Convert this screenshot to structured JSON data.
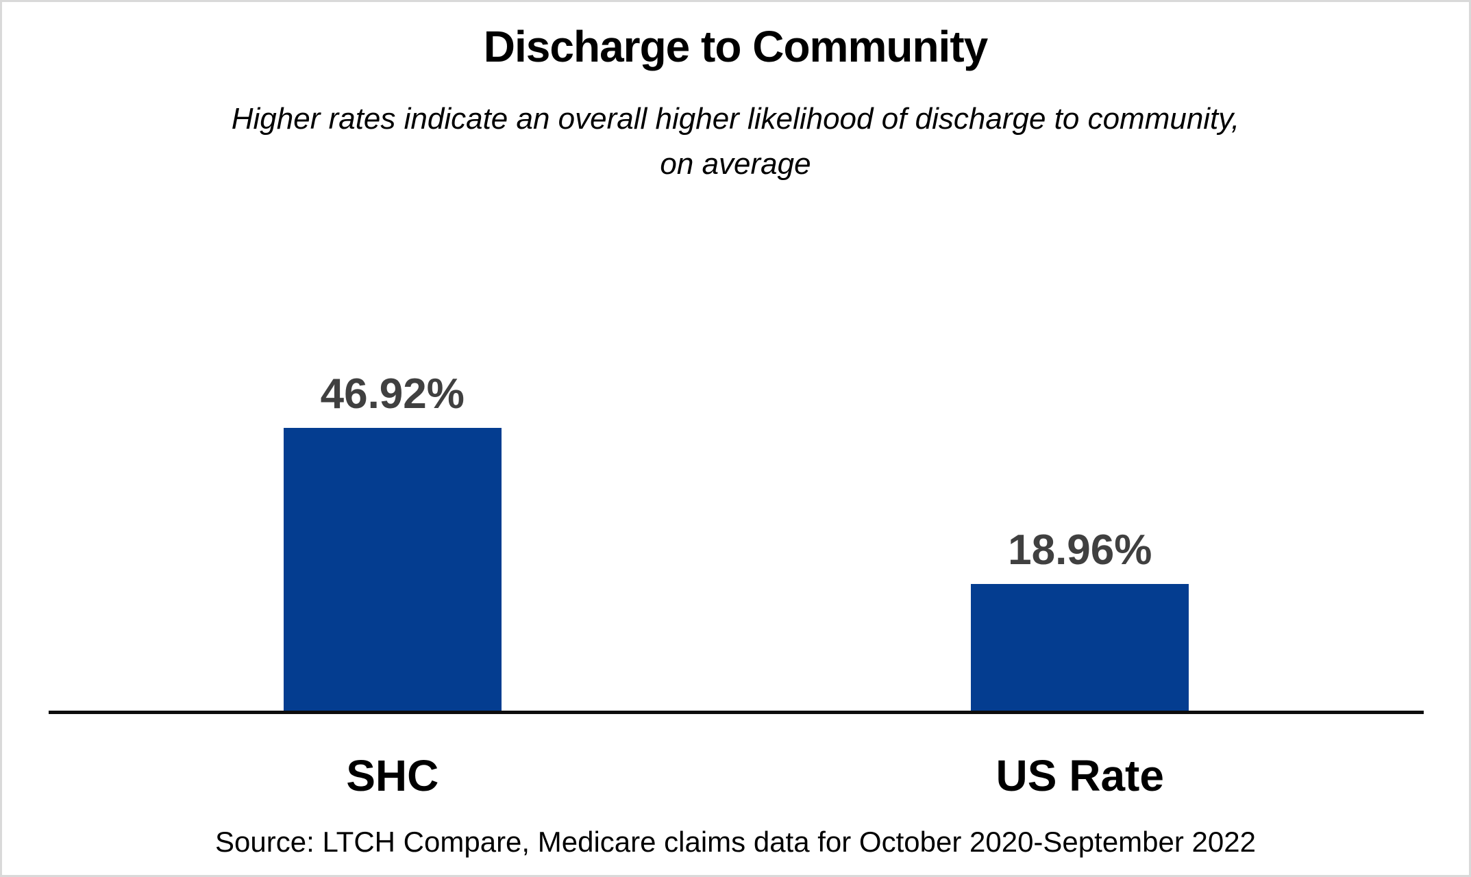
{
  "page": {
    "background_color": "#ffffff",
    "border_color": "#d9d9d9"
  },
  "header": {
    "title": "Discharge to Community",
    "subtitle": "Higher rates indicate an overall higher likelihood of discharge to community, on average"
  },
  "chart_data": {
    "type": "bar",
    "title": "Discharge to Community",
    "subtitle": "Higher rates indicate an overall higher likelihood of discharge to community, on average",
    "categories": [
      "SHC",
      "US Rate"
    ],
    "values": [
      46.92,
      18.96
    ],
    "data_labels": [
      "46.92%",
      "18.96%"
    ],
    "ylim": [
      0,
      50
    ],
    "xlabel": "",
    "ylabel": "",
    "grid": false,
    "legend": false,
    "y_axis_visible": false,
    "bar_color": "#043d90",
    "value_label_color": "#404040",
    "axis_line_color": "#0d0d0d",
    "source": "Source: LTCH Compare, Medicare claims data for October 2020-September 2022"
  },
  "footer": {
    "source_note": "Source: LTCH Compare, Medicare claims data for October 2020-September 2022"
  }
}
